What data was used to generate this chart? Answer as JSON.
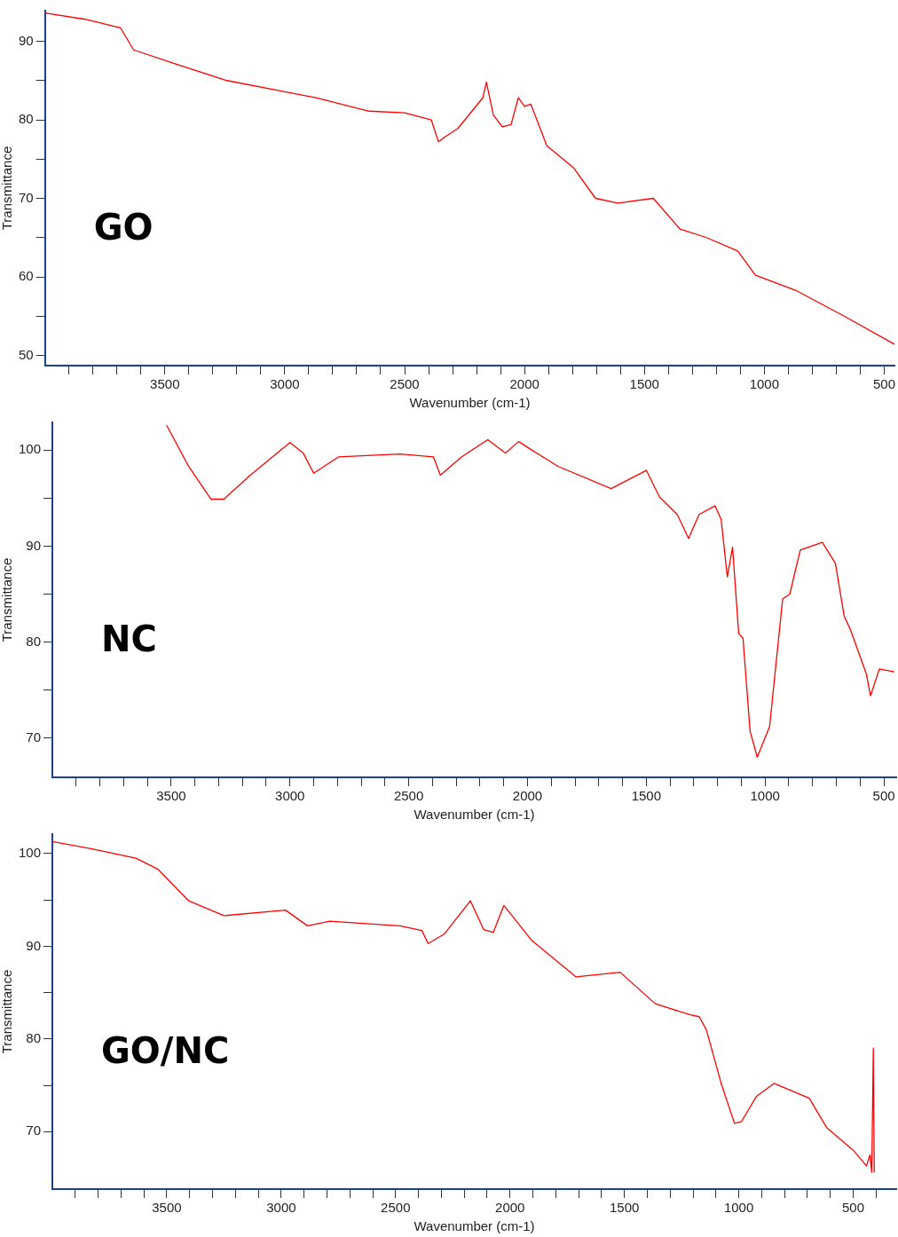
{
  "chart_data": [
    {
      "type": "line",
      "xlabel": "Wavenumber (cm-1)",
      "ylabel": "Transmittance",
      "annotations": [
        "GO"
      ],
      "grid": false,
      "legend": false,
      "marker": "none",
      "line_style": "solid",
      "xlim": [
        4000,
        456
      ],
      "ylim": [
        48.7,
        93.9
      ],
      "xticks": [
        {
          "value": 3900,
          "label": null
        },
        {
          "value": 3800,
          "label": null
        },
        {
          "value": 3700,
          "label": null
        },
        {
          "value": 3600,
          "label": null
        },
        3500,
        {
          "value": 3400,
          "label": null
        },
        {
          "value": 3300,
          "label": null
        },
        {
          "value": 3200,
          "label": null
        },
        {
          "value": 3100,
          "label": null
        },
        3000,
        {
          "value": 2900,
          "label": null
        },
        {
          "value": 2800,
          "label": null
        },
        {
          "value": 2700,
          "label": null
        },
        {
          "value": 2600,
          "label": null
        },
        2500,
        {
          "value": 2400,
          "label": null
        },
        {
          "value": 2300,
          "label": null
        },
        {
          "value": 2200,
          "label": null
        },
        {
          "value": 2100,
          "label": null
        },
        2000,
        {
          "value": 1900,
          "label": null
        },
        {
          "value": 1800,
          "label": null
        },
        {
          "value": 1700,
          "label": null
        },
        {
          "value": 1600,
          "label": null
        },
        1500,
        {
          "value": 1400,
          "label": null
        },
        {
          "value": 1300,
          "label": null
        },
        {
          "value": 1200,
          "label": null
        },
        {
          "value": 1100,
          "label": null
        },
        1000,
        {
          "value": 900,
          "label": null
        },
        {
          "value": 800,
          "label": null
        },
        {
          "value": 700,
          "label": null
        },
        {
          "value": 600,
          "label": null
        },
        500
      ],
      "yticks": [
        50,
        {
          "value": 55,
          "label": null
        },
        60,
        {
          "value": 65,
          "label": null
        },
        70,
        {
          "value": 75,
          "label": null
        },
        80,
        {
          "value": 85,
          "label": null
        },
        90
      ],
      "series": [
        {
          "color": "#ff0000",
          "x": [
            4000,
            3833,
            3685,
            3630,
            3463,
            3241,
            3019,
            2870,
            2648,
            2500,
            2389,
            2359,
            2333,
            2278,
            2174,
            2159,
            2130,
            2093,
            2056,
            2026,
            2000,
            1974,
            1907,
            1796,
            1704,
            1611,
            1463,
            1352,
            1241,
            1111,
            1037,
            870,
            667,
            456
          ],
          "values": [
            93.6,
            92.8,
            91.7,
            88.9,
            87.2,
            85,
            83.7,
            82.8,
            81.1,
            80.9,
            80,
            77.2,
            77.8,
            78.9,
            82.8,
            84.8,
            80.6,
            79.1,
            79.4,
            82.8,
            81.7,
            82,
            76.7,
            73.9,
            70,
            69.4,
            70,
            66.1,
            65,
            63.3,
            60.2,
            58.3,
            55,
            51.4
          ]
        }
      ]
    },
    {
      "type": "line",
      "xlabel": "Wavenumber (cm-1)",
      "ylabel": "Transmittance",
      "annotations": [
        "NC"
      ],
      "grid": false,
      "legend": false,
      "marker": "none",
      "line_style": "solid",
      "xlim": [
        4000,
        448
      ],
      "ylim": [
        65.9,
        102.9
      ],
      "xticks": [
        {
          "value": 3900,
          "label": null
        },
        {
          "value": 3800,
          "label": null
        },
        {
          "value": 3700,
          "label": null
        },
        {
          "value": 3600,
          "label": null
        },
        3500,
        {
          "value": 3400,
          "label": null
        },
        {
          "value": 3300,
          "label": null
        },
        {
          "value": 3200,
          "label": null
        },
        {
          "value": 3100,
          "label": null
        },
        3000,
        {
          "value": 2900,
          "label": null
        },
        {
          "value": 2800,
          "label": null
        },
        {
          "value": 2700,
          "label": null
        },
        {
          "value": 2600,
          "label": null
        },
        2500,
        {
          "value": 2400,
          "label": null
        },
        {
          "value": 2300,
          "label": null
        },
        {
          "value": 2200,
          "label": null
        },
        {
          "value": 2100,
          "label": null
        },
        2000,
        {
          "value": 1900,
          "label": null
        },
        {
          "value": 1800,
          "label": null
        },
        {
          "value": 1700,
          "label": null
        },
        {
          "value": 1600,
          "label": null
        },
        1500,
        {
          "value": 1400,
          "label": null
        },
        {
          "value": 1300,
          "label": null
        },
        {
          "value": 1200,
          "label": null
        },
        {
          "value": 1100,
          "label": null
        },
        1000,
        {
          "value": 900,
          "label": null
        },
        {
          "value": 800,
          "label": null
        },
        {
          "value": 700,
          "label": null
        },
        {
          "value": 600,
          "label": null
        },
        500
      ],
      "yticks": [
        70,
        {
          "value": 75,
          "label": null
        },
        80,
        {
          "value": 85,
          "label": null
        },
        90,
        {
          "value": 95,
          "label": null
        },
        100
      ],
      "series": [
        {
          "color": "#ff0000",
          "x": [
            3519,
            3426,
            3333,
            3278,
            3167,
            3000,
            2944,
            2900,
            2796,
            2537,
            2396,
            2367,
            2278,
            2167,
            2093,
            2037,
            1981,
            1870,
            1648,
            1500,
            1444,
            1370,
            1322,
            1278,
            1211,
            1185,
            1159,
            1137,
            1111,
            1093,
            1063,
            1033,
            981,
            926,
            896,
            852,
            759,
            704,
            667,
            641,
            574,
            556,
            519,
            456
          ],
          "values": [
            102.6,
            98.3,
            94.9,
            94.9,
            97.4,
            100.8,
            99.7,
            97.6,
            99.3,
            99.6,
            99.3,
            97.4,
            99.3,
            101.1,
            99.7,
            100.9,
            100,
            98.3,
            96,
            97.9,
            95.1,
            93.3,
            90.8,
            93.3,
            94.2,
            92.8,
            86.8,
            89.9,
            80.9,
            80.4,
            70.7,
            68,
            71.2,
            84.5,
            85,
            89.6,
            90.4,
            88.2,
            82.7,
            81.3,
            76.7,
            74.4,
            77.2,
            76.9
          ]
        }
      ]
    },
    {
      "type": "line",
      "xlabel": "Wavenumber (cm-1)",
      "ylabel": "Transmittance",
      "annotations": [
        "GO/NC"
      ],
      "grid": false,
      "legend": false,
      "marker": "none",
      "line_style": "solid",
      "xlim": [
        4000,
        312
      ],
      "ylim": [
        63.8,
        102.1
      ],
      "xticks": [
        {
          "value": 3900,
          "label": null
        },
        {
          "value": 3800,
          "label": null
        },
        {
          "value": 3700,
          "label": null
        },
        {
          "value": 3600,
          "label": null
        },
        3500,
        {
          "value": 3400,
          "label": null
        },
        {
          "value": 3300,
          "label": null
        },
        {
          "value": 3200,
          "label": null
        },
        {
          "value": 3100,
          "label": null
        },
        3000,
        {
          "value": 2900,
          "label": null
        },
        {
          "value": 2800,
          "label": null
        },
        {
          "value": 2700,
          "label": null
        },
        {
          "value": 2600,
          "label": null
        },
        2500,
        {
          "value": 2400,
          "label": null
        },
        {
          "value": 2300,
          "label": null
        },
        {
          "value": 2200,
          "label": null
        },
        {
          "value": 2100,
          "label": null
        },
        2000,
        {
          "value": 1900,
          "label": null
        },
        {
          "value": 1800,
          "label": null
        },
        {
          "value": 1700,
          "label": null
        },
        {
          "value": 1600,
          "label": null
        },
        1500,
        {
          "value": 1400,
          "label": null
        },
        {
          "value": 1300,
          "label": null
        },
        {
          "value": 1200,
          "label": null
        },
        {
          "value": 1100,
          "label": null
        },
        1000,
        {
          "value": 900,
          "label": null
        },
        {
          "value": 800,
          "label": null
        },
        {
          "value": 700,
          "label": null
        },
        {
          "value": 600,
          "label": null
        },
        500,
        {
          "value": 400,
          "label": null
        }
      ],
      "yticks": [
        70,
        {
          "value": 75,
          "label": null
        },
        80,
        {
          "value": 85,
          "label": null
        },
        90,
        {
          "value": 95,
          "label": null
        },
        100
      ],
      "series": [
        {
          "color": "#ff0000",
          "x": [
            4000,
            3827,
            3635,
            3538,
            3404,
            3250,
            2981,
            2885,
            2788,
            2481,
            2385,
            2358,
            2288,
            2173,
            2115,
            2073,
            2027,
            1981,
            1904,
            1712,
            1519,
            1365,
            1212,
            1173,
            1142,
            1077,
            1019,
            988,
            923,
            846,
            692,
            615,
            500,
            442,
            427,
            419,
            412,
            408
          ],
          "values": [
            101.3,
            100.5,
            99.5,
            98.3,
            94.9,
            93.3,
            93.9,
            92.2,
            92.7,
            92.2,
            91.7,
            90.3,
            91.3,
            94.9,
            91.8,
            91.5,
            94.4,
            93,
            90.6,
            86.7,
            87.2,
            83.8,
            82.6,
            82.4,
            81,
            75.2,
            70.9,
            71.1,
            73.8,
            75.2,
            73.6,
            70.4,
            68,
            66.3,
            67.5,
            65.6,
            79,
            65.6
          ]
        }
      ]
    }
  ]
}
